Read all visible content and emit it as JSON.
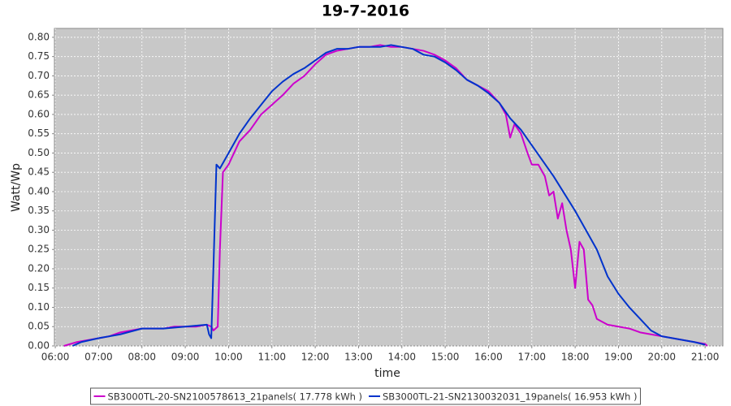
{
  "chart_data": {
    "type": "line",
    "title": "19-7-2016",
    "x_label": "time",
    "y_label": "Watt/Wp",
    "xlim": [
      5.98,
      21.41
    ],
    "ylim": [
      0,
      0.823
    ],
    "xticks": [
      {
        "value": 6,
        "label": "06:00"
      },
      {
        "value": 7,
        "label": "07:00"
      },
      {
        "value": 8,
        "label": "08:00"
      },
      {
        "value": 9,
        "label": "09:00"
      },
      {
        "value": 10,
        "label": "10:00"
      },
      {
        "value": 11,
        "label": "11:00"
      },
      {
        "value": 12,
        "label": "12:00"
      },
      {
        "value": 13,
        "label": "13:00"
      },
      {
        "value": 14,
        "label": "14:00"
      },
      {
        "value": 15,
        "label": "15:00"
      },
      {
        "value": 16,
        "label": "16:00"
      },
      {
        "value": 17,
        "label": "17:00"
      },
      {
        "value": 18,
        "label": "18:00"
      },
      {
        "value": 19,
        "label": "19:00"
      },
      {
        "value": 20,
        "label": "20:00"
      },
      {
        "value": 21,
        "label": "21:00"
      }
    ],
    "yticks": [
      {
        "value": 0,
        "label": "0.00"
      },
      0.05,
      {
        "value": 0.1,
        "label": "0.10"
      },
      0.15,
      {
        "value": 0.2,
        "label": "0.20"
      },
      0.25,
      {
        "value": 0.3,
        "label": "0.30"
      },
      0.35,
      {
        "value": 0.4,
        "label": "0.40"
      },
      0.45,
      {
        "value": 0.5,
        "label": "0.50"
      },
      0.55,
      {
        "value": 0.6,
        "label": "0.60"
      },
      0.65,
      {
        "value": 0.7,
        "label": "0.70"
      },
      0.75,
      {
        "value": 0.8,
        "label": "0.80"
      }
    ],
    "grid": true,
    "series": [
      {
        "name": "SB3000TL-20-SN2100578613_21panels( 17.778 kWh )",
        "color": "#cc00cc",
        "x": [
          6.2,
          6.5,
          6.75,
          7,
          7.25,
          7.5,
          7.75,
          8,
          8.25,
          8.5,
          8.75,
          9,
          9.25,
          9.5,
          9.6,
          9.65,
          9.75,
          9.8,
          9.87,
          10,
          10.25,
          10.5,
          10.75,
          11,
          11.25,
          11.5,
          11.75,
          12,
          12.25,
          12.5,
          12.75,
          13,
          13.25,
          13.5,
          13.75,
          14,
          14.25,
          14.5,
          14.75,
          15,
          15.25,
          15.5,
          15.75,
          16,
          16.25,
          16.4,
          16.5,
          16.6,
          16.75,
          16.9,
          17,
          17.15,
          17.3,
          17.4,
          17.5,
          17.6,
          17.7,
          17.8,
          17.9,
          18,
          18.1,
          18.2,
          18.3,
          18.4,
          18.5,
          18.75,
          19,
          19.25,
          19.5,
          19.75,
          20,
          20.25,
          20.5,
          20.75,
          21,
          21.05
        ],
        "values": [
          0,
          0.01,
          0.015,
          0.02,
          0.025,
          0.035,
          0.04,
          0.045,
          0.045,
          0.045,
          0.05,
          0.05,
          0.05,
          0.055,
          0.05,
          0.04,
          0.05,
          0.25,
          0.45,
          0.47,
          0.53,
          0.56,
          0.6,
          0.625,
          0.65,
          0.68,
          0.7,
          0.73,
          0.755,
          0.765,
          0.77,
          0.775,
          0.775,
          0.78,
          0.775,
          0.775,
          0.77,
          0.765,
          0.755,
          0.74,
          0.72,
          0.69,
          0.675,
          0.66,
          0.63,
          0.6,
          0.54,
          0.575,
          0.55,
          0.5,
          0.47,
          0.47,
          0.44,
          0.39,
          0.4,
          0.33,
          0.37,
          0.3,
          0.25,
          0.15,
          0.27,
          0.25,
          0.12,
          0.105,
          0.07,
          0.055,
          0.05,
          0.045,
          0.035,
          0.03,
          0.025,
          0.02,
          0.015,
          0.01,
          0.005,
          0
        ]
      },
      {
        "name": "SB3000TL-21-SN2130032031_19panels( 16.953 kWh )",
        "color": "#0033cc",
        "x": [
          6.4,
          6.6,
          7,
          7.5,
          8,
          8.5,
          9,
          9.5,
          9.55,
          9.6,
          9.65,
          9.72,
          9.8,
          10,
          10.25,
          10.5,
          10.75,
          11,
          11.25,
          11.5,
          11.75,
          12,
          12.25,
          12.5,
          12.75,
          13,
          13.25,
          13.5,
          13.75,
          14,
          14.25,
          14.5,
          14.75,
          15,
          15.25,
          15.5,
          15.75,
          16,
          16.25,
          16.5,
          16.75,
          17,
          17.25,
          17.5,
          17.75,
          18,
          18.25,
          18.5,
          18.75,
          19,
          19.25,
          19.5,
          19.75,
          20,
          20.25,
          20.5,
          20.75,
          21
        ],
        "values": [
          0,
          0.01,
          0.02,
          0.03,
          0.045,
          0.045,
          0.05,
          0.055,
          0.03,
          0.02,
          0.2,
          0.47,
          0.46,
          0.5,
          0.55,
          0.59,
          0.625,
          0.66,
          0.685,
          0.705,
          0.72,
          0.74,
          0.76,
          0.77,
          0.77,
          0.775,
          0.775,
          0.775,
          0.78,
          0.775,
          0.77,
          0.755,
          0.75,
          0.735,
          0.715,
          0.69,
          0.675,
          0.655,
          0.63,
          0.59,
          0.56,
          0.52,
          0.48,
          0.44,
          0.395,
          0.35,
          0.3,
          0.25,
          0.18,
          0.135,
          0.1,
          0.07,
          0.04,
          0.025,
          0.02,
          0.015,
          0.01,
          0.003
        ]
      }
    ]
  }
}
